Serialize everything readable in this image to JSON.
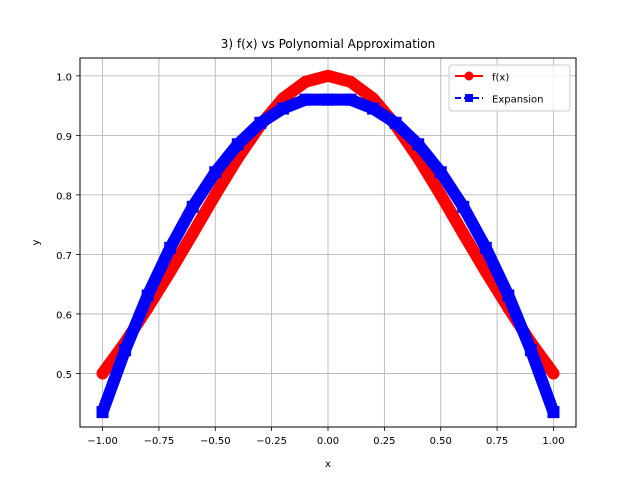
{
  "chart_data": {
    "type": "line",
    "title": "3) f(x) vs Polynomial Approximation",
    "xlabel": "x",
    "ylabel": "y",
    "xlim": [
      -1.1,
      1.1
    ],
    "ylim": [
      0.41,
      1.03
    ],
    "xticks": [
      -1.0,
      -0.75,
      -0.5,
      -0.25,
      0.0,
      0.25,
      0.5,
      0.75,
      1.0
    ],
    "xtick_labels": [
      "−1.00",
      "−0.75",
      "−0.50",
      "−0.25",
      "0.00",
      "0.25",
      "0.50",
      "0.75",
      "1.00"
    ],
    "yticks": [
      0.5,
      0.6,
      0.7,
      0.8,
      0.9,
      1.0
    ],
    "ytick_labels": [
      "0.5",
      "0.6",
      "0.7",
      "0.8",
      "0.9",
      "1.0"
    ],
    "grid": true,
    "legend_position": "top-right",
    "series": [
      {
        "name": "f(x)",
        "color": "#ff0000",
        "marker": "circle",
        "linestyle": "solid",
        "x": [
          -1.0,
          -0.9,
          -0.8,
          -0.7,
          -0.6,
          -0.5,
          -0.4,
          -0.3,
          -0.2,
          -0.1,
          0.0,
          0.1,
          0.2,
          0.3,
          0.4,
          0.5,
          0.6,
          0.7,
          0.8,
          0.9,
          1.0
        ],
        "y": [
          0.5,
          0.552,
          0.61,
          0.671,
          0.735,
          0.8,
          0.862,
          0.917,
          0.962,
          0.99,
          1.0,
          0.99,
          0.962,
          0.917,
          0.862,
          0.8,
          0.735,
          0.671,
          0.61,
          0.552,
          0.5
        ]
      },
      {
        "name": "Expansion",
        "color": "#0000ff",
        "marker": "square",
        "linestyle": "dashed",
        "x": [
          -1.0,
          -0.9,
          -0.8,
          -0.7,
          -0.6,
          -0.5,
          -0.4,
          -0.3,
          -0.2,
          -0.1,
          0.0,
          0.1,
          0.2,
          0.3,
          0.4,
          0.5,
          0.6,
          0.7,
          0.8,
          0.9,
          1.0
        ],
        "y": [
          0.435,
          0.539,
          0.631,
          0.711,
          0.78,
          0.838,
          0.885,
          0.921,
          0.945,
          0.96,
          0.96,
          0.96,
          0.945,
          0.921,
          0.885,
          0.838,
          0.78,
          0.711,
          0.631,
          0.539,
          0.435
        ]
      }
    ]
  }
}
